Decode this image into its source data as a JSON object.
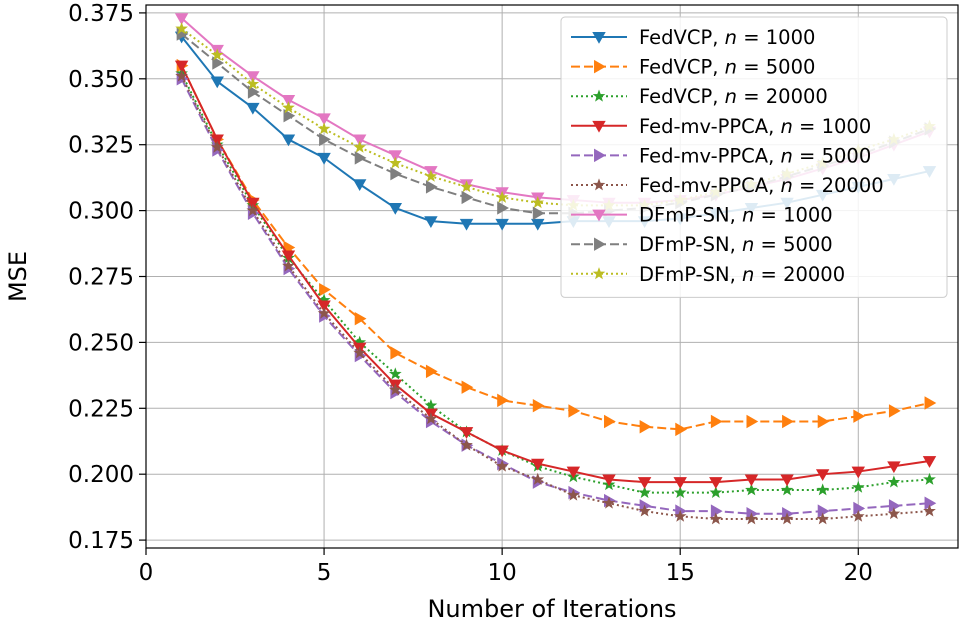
{
  "chart_data": {
    "type": "line",
    "title": "",
    "xlabel": "Number of Iterations",
    "ylabel": "MSE",
    "xlim": [
      0.0,
      22.8
    ],
    "ylim": [
      0.172,
      0.378
    ],
    "xticks": [
      0,
      5,
      10,
      15,
      20
    ],
    "xtick_labels": [
      "0",
      "5",
      "10",
      "15",
      "20"
    ],
    "yticks": [
      0.175,
      0.2,
      0.225,
      0.25,
      0.275,
      0.3,
      0.325,
      0.35,
      0.375
    ],
    "ytick_labels": [
      "0.175",
      "0.200",
      "0.225",
      "0.250",
      "0.275",
      "0.300",
      "0.325",
      "0.350",
      "0.375"
    ],
    "grid": true,
    "legend_position": "upper right",
    "x": [
      1,
      2,
      3,
      4,
      5,
      6,
      7,
      8,
      9,
      10,
      11,
      12,
      13,
      14,
      15,
      16,
      17,
      18,
      19,
      20,
      21,
      22
    ],
    "series": [
      {
        "method": "FedVCP",
        "n_label": "n",
        "eq": " = ",
        "n_value": "1000",
        "color": "#1f77b4",
        "dash": "solid",
        "marker": "triangle-down",
        "values": [
          0.366,
          0.349,
          0.339,
          0.327,
          0.32,
          0.31,
          0.301,
          0.296,
          0.295,
          0.295,
          0.295,
          0.296,
          0.296,
          0.296,
          0.297,
          0.299,
          0.301,
          0.303,
          0.306,
          0.309,
          0.312,
          0.315
        ]
      },
      {
        "method": "FedVCP",
        "n_label": "n",
        "eq": " = ",
        "n_value": "5000",
        "color": "#ff7f0e",
        "dash": "dashed",
        "marker": "triangle-right",
        "values": [
          0.355,
          0.327,
          0.304,
          0.286,
          0.27,
          0.259,
          0.246,
          0.239,
          0.233,
          0.228,
          0.226,
          0.224,
          0.22,
          0.218,
          0.217,
          0.22,
          0.22,
          0.22,
          0.22,
          0.222,
          0.224,
          0.227
        ]
      },
      {
        "method": "FedVCP",
        "n_label": "n",
        "eq": " = ",
        "n_value": "20000",
        "color": "#2ca02c",
        "dash": "dotted",
        "marker": "star",
        "values": [
          0.352,
          0.325,
          0.302,
          0.282,
          0.266,
          0.25,
          0.238,
          0.226,
          0.216,
          0.209,
          0.203,
          0.199,
          0.196,
          0.193,
          0.193,
          0.193,
          0.194,
          0.194,
          0.194,
          0.195,
          0.197,
          0.198
        ]
      },
      {
        "method": "Fed-mv-PPCA",
        "n_label": "n",
        "eq": " = ",
        "n_value": "1000",
        "color": "#d62728",
        "dash": "solid",
        "marker": "triangle-down",
        "values": [
          0.355,
          0.327,
          0.303,
          0.283,
          0.264,
          0.248,
          0.234,
          0.223,
          0.216,
          0.209,
          0.204,
          0.201,
          0.198,
          0.197,
          0.197,
          0.197,
          0.198,
          0.198,
          0.2,
          0.201,
          0.203,
          0.205
        ]
      },
      {
        "method": "Fed-mv-PPCA",
        "n_label": "n",
        "eq": " = ",
        "n_value": "5000",
        "color": "#9467bd",
        "dash": "dashed",
        "marker": "triangle-right",
        "values": [
          0.35,
          0.323,
          0.299,
          0.278,
          0.26,
          0.245,
          0.231,
          0.22,
          0.211,
          0.204,
          0.197,
          0.193,
          0.19,
          0.188,
          0.186,
          0.186,
          0.185,
          0.185,
          0.186,
          0.187,
          0.188,
          0.189
        ]
      },
      {
        "method": "Fed-mv-PPCA",
        "n_label": "n",
        "eq": " = ",
        "n_value": "20000",
        "color": "#8c564b",
        "dash": "dotted",
        "marker": "star",
        "values": [
          0.351,
          0.324,
          0.3,
          0.279,
          0.261,
          0.246,
          0.232,
          0.221,
          0.211,
          0.203,
          0.198,
          0.192,
          0.189,
          0.186,
          0.184,
          0.183,
          0.183,
          0.183,
          0.183,
          0.184,
          0.185,
          0.186
        ]
      },
      {
        "method": "DFmP-SN",
        "n_label": "n",
        "eq": " = ",
        "n_value": "1000",
        "color": "#e377c2",
        "dash": "solid",
        "marker": "triangle-down",
        "values": [
          0.373,
          0.361,
          0.351,
          0.342,
          0.335,
          0.327,
          0.321,
          0.315,
          0.31,
          0.307,
          0.305,
          0.304,
          0.303,
          0.303,
          0.304,
          0.306,
          0.309,
          0.312,
          0.316,
          0.32,
          0.325,
          0.33
        ]
      },
      {
        "method": "DFmP-SN",
        "n_label": "n",
        "eq": " = ",
        "n_value": "5000",
        "color": "#7f7f7f",
        "dash": "dashed",
        "marker": "triangle-right",
        "values": [
          0.367,
          0.356,
          0.345,
          0.336,
          0.327,
          0.32,
          0.314,
          0.309,
          0.305,
          0.301,
          0.299,
          0.299,
          0.3,
          0.301,
          0.303,
          0.306,
          0.309,
          0.313,
          0.317,
          0.321,
          0.326,
          0.331
        ]
      },
      {
        "method": "DFmP-SN",
        "n_label": "n",
        "eq": " = ",
        "n_value": "20000",
        "color": "#bcbd22",
        "dash": "dotted",
        "marker": "star",
        "values": [
          0.369,
          0.359,
          0.348,
          0.339,
          0.331,
          0.324,
          0.318,
          0.313,
          0.309,
          0.305,
          0.303,
          0.302,
          0.302,
          0.302,
          0.304,
          0.307,
          0.31,
          0.314,
          0.318,
          0.323,
          0.327,
          0.332
        ]
      }
    ]
  }
}
